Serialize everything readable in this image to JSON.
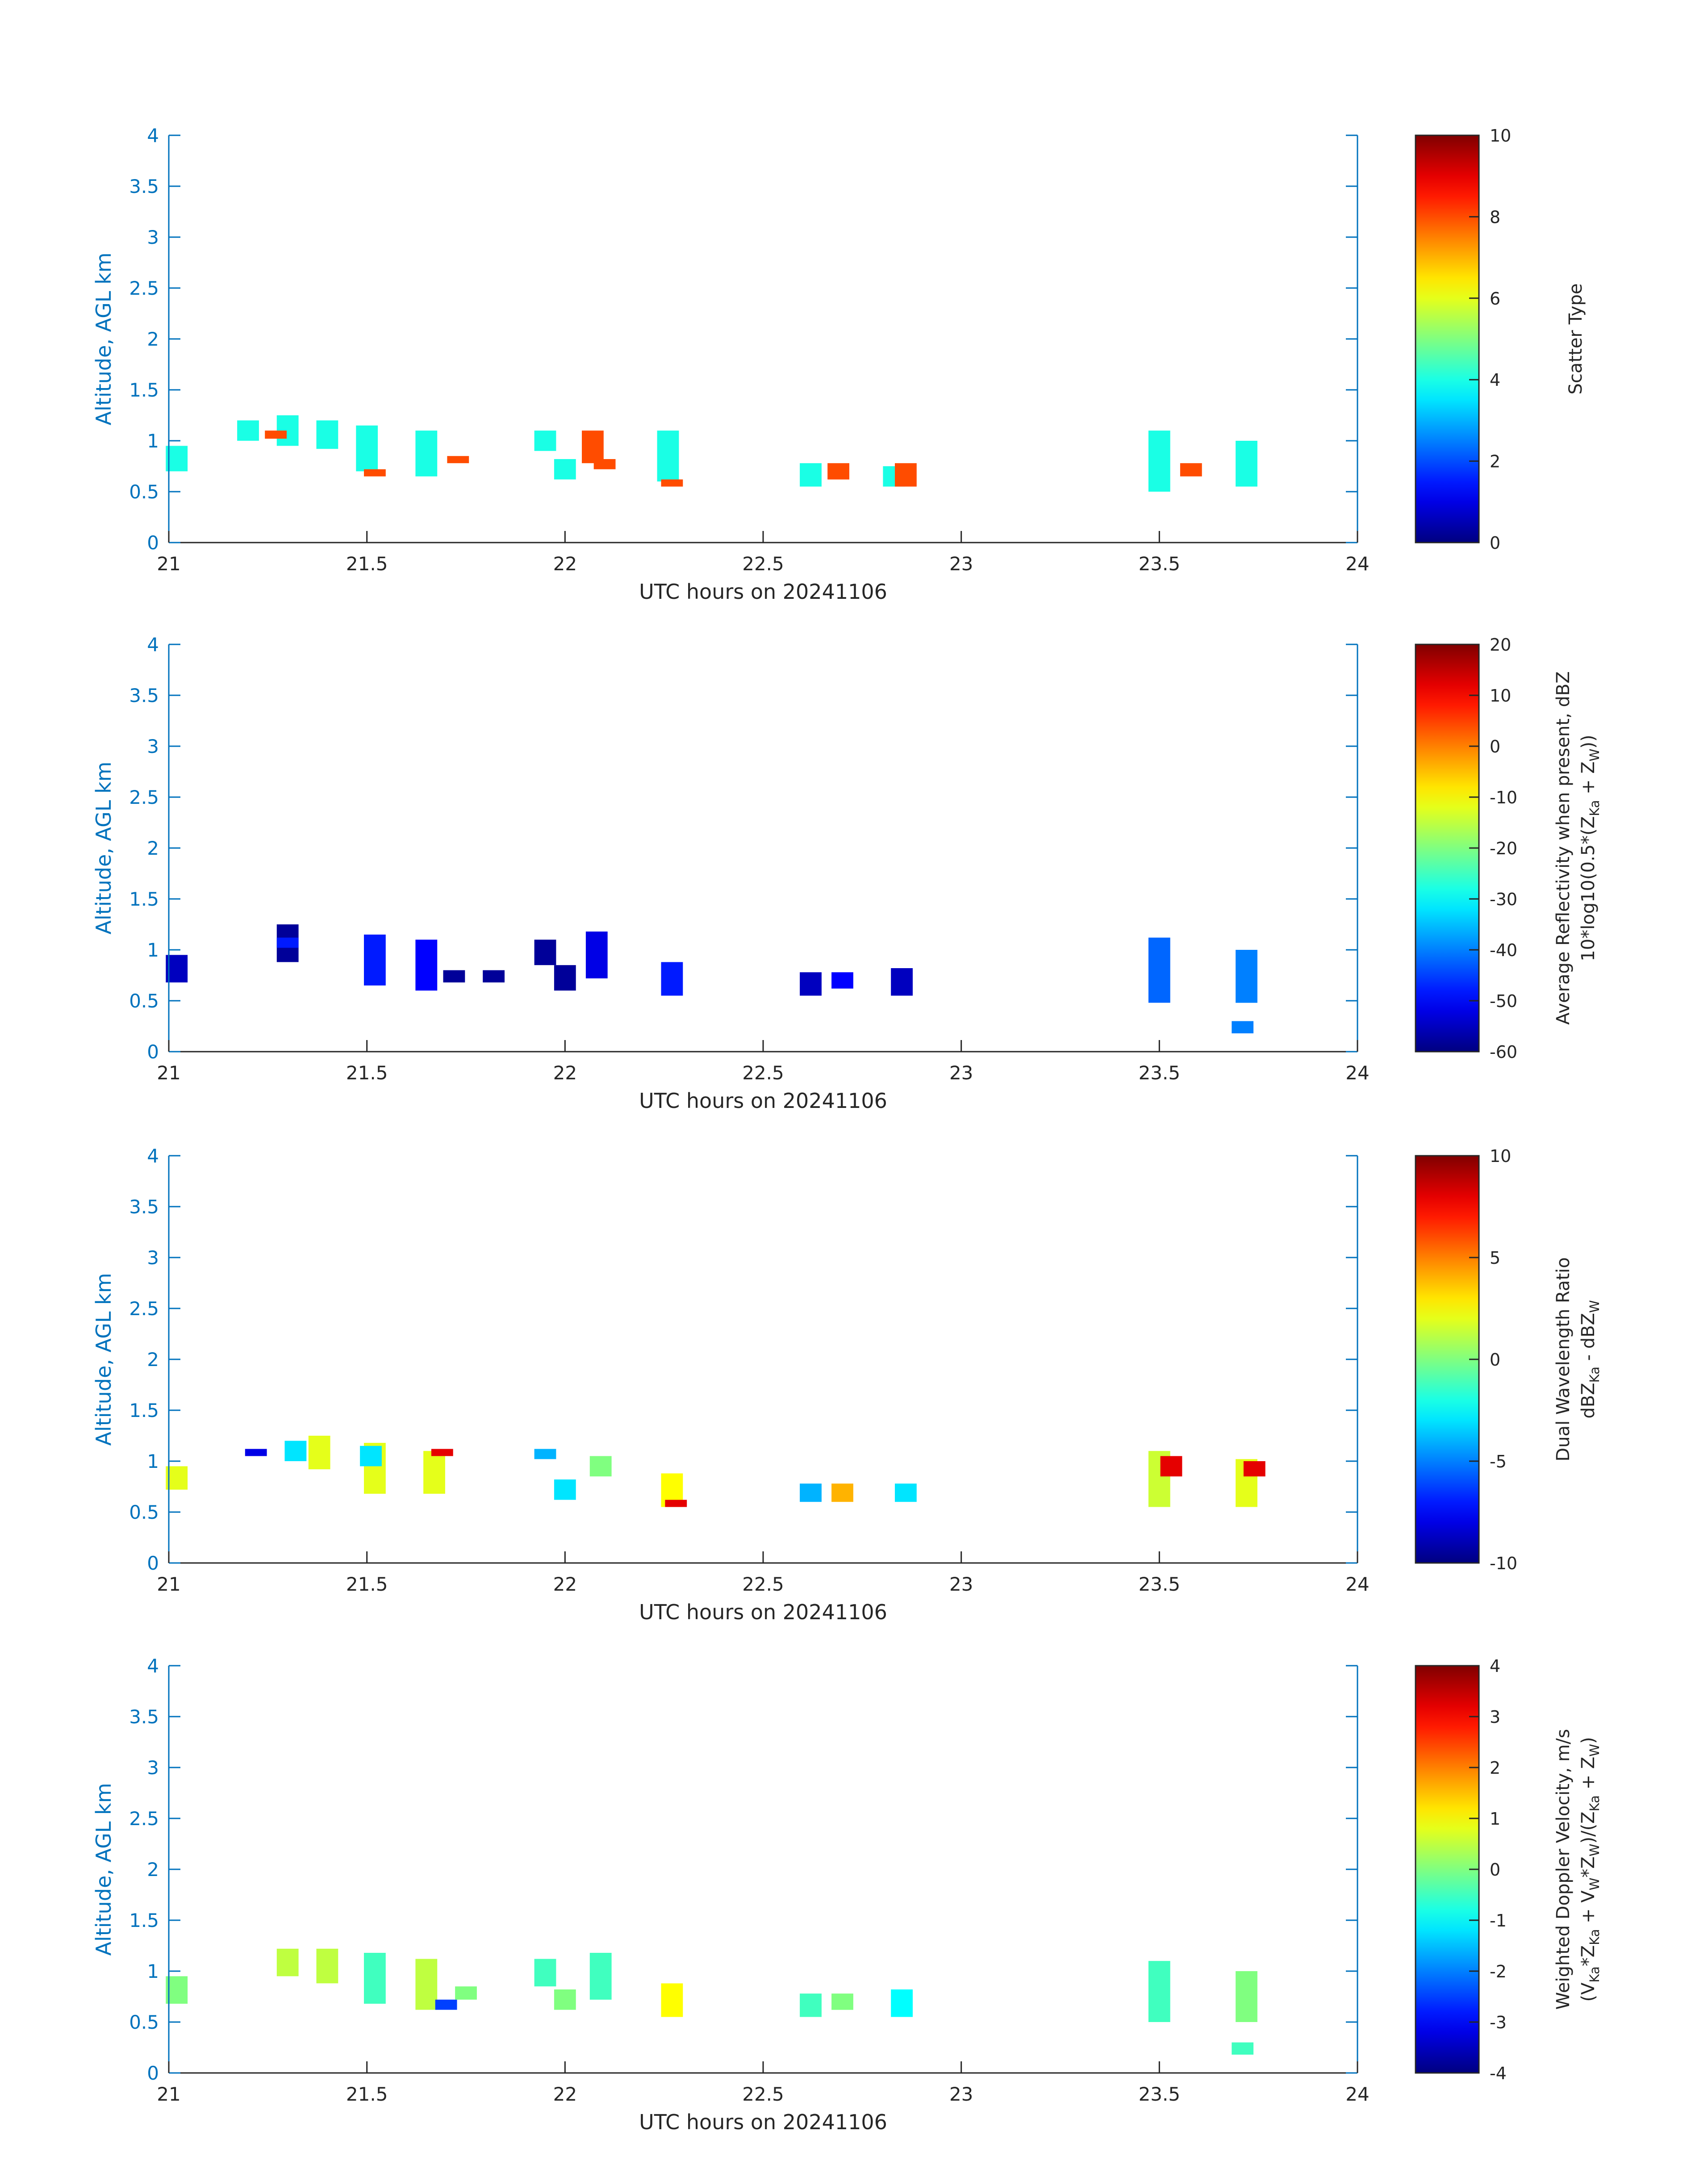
{
  "chart_data": [
    {
      "type": "heatmap",
      "xlabel": "UTC hours on 20241106",
      "ylabel": "Altitude, AGL km",
      "xlim": [
        21,
        24
      ],
      "ylim": [
        0,
        4
      ],
      "xticks": [
        "21",
        "21.5",
        "22",
        "22.5",
        "23",
        "23.5",
        "24"
      ],
      "yticks": [
        "0",
        "0.5",
        "1",
        "1.5",
        "2",
        "2.5",
        "3",
        "3.5",
        "4"
      ],
      "colorbar": {
        "label_lines": [
          "Scatter Type"
        ],
        "range": [
          0,
          10
        ],
        "ticks": [
          "0",
          "2",
          "4",
          "6",
          "8",
          "10"
        ]
      },
      "cells": [
        {
          "t": 21.02,
          "z0": 0.7,
          "z1": 0.95,
          "v": 4.0
        },
        {
          "t": 21.2,
          "z0": 1.0,
          "z1": 1.2,
          "v": 4.0
        },
        {
          "t": 21.3,
          "z0": 0.95,
          "z1": 1.25,
          "v": 4.0
        },
        {
          "t": 21.27,
          "z0": 1.02,
          "z1": 1.1,
          "v": 8.0
        },
        {
          "t": 21.4,
          "z0": 0.92,
          "z1": 1.2,
          "v": 4.0
        },
        {
          "t": 21.5,
          "z0": 0.7,
          "z1": 1.15,
          "v": 4.0
        },
        {
          "t": 21.52,
          "z0": 0.65,
          "z1": 0.72,
          "v": 8.0
        },
        {
          "t": 21.65,
          "z0": 0.65,
          "z1": 1.1,
          "v": 4.0
        },
        {
          "t": 21.73,
          "z0": 0.78,
          "z1": 0.85,
          "v": 8.0
        },
        {
          "t": 21.95,
          "z0": 0.9,
          "z1": 1.1,
          "v": 4.0
        },
        {
          "t": 22.0,
          "z0": 0.62,
          "z1": 0.82,
          "v": 4.0
        },
        {
          "t": 22.07,
          "z0": 0.78,
          "z1": 1.1,
          "v": 8.0
        },
        {
          "t": 22.1,
          "z0": 0.72,
          "z1": 0.82,
          "v": 8.0
        },
        {
          "t": 22.26,
          "z0": 0.6,
          "z1": 1.1,
          "v": 4.0
        },
        {
          "t": 22.27,
          "z0": 0.55,
          "z1": 0.62,
          "v": 8.0
        },
        {
          "t": 22.62,
          "z0": 0.55,
          "z1": 0.78,
          "v": 4.0
        },
        {
          "t": 22.69,
          "z0": 0.62,
          "z1": 0.78,
          "v": 8.0
        },
        {
          "t": 22.83,
          "z0": 0.55,
          "z1": 0.75,
          "v": 4.0
        },
        {
          "t": 22.86,
          "z0": 0.55,
          "z1": 0.78,
          "v": 8.0
        },
        {
          "t": 23.5,
          "z0": 0.5,
          "z1": 1.1,
          "v": 4.0
        },
        {
          "t": 23.58,
          "z0": 0.65,
          "z1": 0.78,
          "v": 8.0
        },
        {
          "t": 23.72,
          "z0": 0.55,
          "z1": 1.0,
          "v": 4.0
        }
      ]
    },
    {
      "type": "heatmap",
      "xlabel": "UTC hours on 20241106",
      "ylabel": "Altitude, AGL km",
      "xlim": [
        21,
        24
      ],
      "ylim": [
        0,
        4
      ],
      "xticks": [
        "21",
        "21.5",
        "22",
        "22.5",
        "23",
        "23.5",
        "24"
      ],
      "yticks": [
        "0",
        "0.5",
        "1",
        "1.5",
        "2",
        "2.5",
        "3",
        "3.5",
        "4"
      ],
      "colorbar": {
        "label_lines": [
          "Average Reflectivity when present, dBZ",
          "10*log10(0.5*(Z{Ka} + Z{W}))"
        ],
        "range": [
          -60,
          20
        ],
        "ticks": [
          "-60",
          "-50",
          "-40",
          "-30",
          "-20",
          "-10",
          "0",
          "10",
          "20"
        ]
      },
      "cells": [
        {
          "t": 21.02,
          "z0": 0.68,
          "z1": 0.95,
          "v": -55.0
        },
        {
          "t": 21.3,
          "z0": 0.88,
          "z1": 1.25,
          "v": -58.0
        },
        {
          "t": 21.3,
          "z0": 1.02,
          "z1": 1.12,
          "v": -48.0
        },
        {
          "t": 21.52,
          "z0": 0.65,
          "z1": 1.15,
          "v": -48.0
        },
        {
          "t": 21.65,
          "z0": 0.6,
          "z1": 1.1,
          "v": -50.0
        },
        {
          "t": 21.72,
          "z0": 0.68,
          "z1": 0.8,
          "v": -58.0
        },
        {
          "t": 21.82,
          "z0": 0.68,
          "z1": 0.8,
          "v": -58.0
        },
        {
          "t": 21.95,
          "z0": 0.85,
          "z1": 1.1,
          "v": -58.0
        },
        {
          "t": 22.0,
          "z0": 0.6,
          "z1": 0.85,
          "v": -58.0
        },
        {
          "t": 22.08,
          "z0": 0.72,
          "z1": 1.18,
          "v": -52.0
        },
        {
          "t": 22.27,
          "z0": 0.55,
          "z1": 0.88,
          "v": -48.0
        },
        {
          "t": 22.62,
          "z0": 0.55,
          "z1": 0.78,
          "v": -55.0
        },
        {
          "t": 22.7,
          "z0": 0.62,
          "z1": 0.78,
          "v": -50.0
        },
        {
          "t": 22.85,
          "z0": 0.55,
          "z1": 0.82,
          "v": -55.0
        },
        {
          "t": 23.5,
          "z0": 0.48,
          "z1": 1.12,
          "v": -42.0
        },
        {
          "t": 23.72,
          "z0": 0.48,
          "z1": 1.0,
          "v": -40.0
        },
        {
          "t": 23.71,
          "z0": 0.18,
          "z1": 0.3,
          "v": -40.0
        }
      ]
    },
    {
      "type": "heatmap",
      "xlabel": "UTC hours on 20241106",
      "ylabel": "Altitude, AGL km",
      "xlim": [
        21,
        24
      ],
      "ylim": [
        0,
        4
      ],
      "xticks": [
        "21",
        "21.5",
        "22",
        "22.5",
        "23",
        "23.5",
        "24"
      ],
      "yticks": [
        "0",
        "0.5",
        "1",
        "1.5",
        "2",
        "2.5",
        "3",
        "3.5",
        "4"
      ],
      "colorbar": {
        "label_lines": [
          "Dual Wavelength Ratio",
          "dBZ{Ka} - dBZ{W}"
        ],
        "range": [
          -10,
          10
        ],
        "ticks": [
          "-10",
          "-5",
          "0",
          "5",
          "10"
        ]
      },
      "cells": [
        {
          "t": 21.02,
          "z0": 0.72,
          "z1": 0.95,
          "v": 2.0
        },
        {
          "t": 21.22,
          "z0": 1.05,
          "z1": 1.12,
          "v": -8.0
        },
        {
          "t": 21.32,
          "z0": 1.0,
          "z1": 1.2,
          "v": -3.0
        },
        {
          "t": 21.38,
          "z0": 0.92,
          "z1": 1.25,
          "v": 2.0
        },
        {
          "t": 21.52,
          "z0": 0.68,
          "z1": 1.18,
          "v": 2.0
        },
        {
          "t": 21.51,
          "z0": 0.95,
          "z1": 1.15,
          "v": -3.0
        },
        {
          "t": 21.67,
          "z0": 0.68,
          "z1": 1.1,
          "v": 2.0
        },
        {
          "t": 21.69,
          "z0": 1.05,
          "z1": 1.12,
          "v": 8.0
        },
        {
          "t": 21.95,
          "z0": 1.02,
          "z1": 1.12,
          "v": -4.0
        },
        {
          "t": 22.0,
          "z0": 0.62,
          "z1": 0.82,
          "v": -3.0
        },
        {
          "t": 22.09,
          "z0": 0.85,
          "z1": 1.05,
          "v": 0.0
        },
        {
          "t": 22.27,
          "z0": 0.55,
          "z1": 0.88,
          "v": 2.5
        },
        {
          "t": 22.28,
          "z0": 0.55,
          "z1": 0.62,
          "v": 8.0
        },
        {
          "t": 22.62,
          "z0": 0.6,
          "z1": 0.78,
          "v": -4.0
        },
        {
          "t": 22.7,
          "z0": 0.6,
          "z1": 0.78,
          "v": 4.0
        },
        {
          "t": 22.86,
          "z0": 0.6,
          "z1": 0.78,
          "v": -3.0
        },
        {
          "t": 23.5,
          "z0": 0.55,
          "z1": 1.1,
          "v": 1.5
        },
        {
          "t": 23.53,
          "z0": 0.85,
          "z1": 1.05,
          "v": 8.0
        },
        {
          "t": 23.72,
          "z0": 0.55,
          "z1": 1.02,
          "v": 2.0
        },
        {
          "t": 23.74,
          "z0": 0.85,
          "z1": 1.0,
          "v": 8.0
        }
      ]
    },
    {
      "type": "heatmap",
      "xlabel": "UTC hours on 20241106",
      "ylabel": "Altitude, AGL km",
      "xlim": [
        21,
        24
      ],
      "ylim": [
        0,
        4
      ],
      "xticks": [
        "21",
        "21.5",
        "22",
        "22.5",
        "23",
        "23.5",
        "24"
      ],
      "yticks": [
        "0",
        "0.5",
        "1",
        "1.5",
        "2",
        "2.5",
        "3",
        "3.5",
        "4"
      ],
      "colorbar": {
        "label_lines": [
          "Weighted Doppler Velocity, m/s",
          "(V{Ka}*Z{Ka} + V{W}*Z{W})/(Z{Ka} + Z{W})"
        ],
        "range": [
          -4,
          4
        ],
        "ticks": [
          "-4",
          "-3",
          "-2",
          "-1",
          "0",
          "1",
          "2",
          "3",
          "4"
        ]
      },
      "cells": [
        {
          "t": 21.02,
          "z0": 0.68,
          "z1": 0.95,
          "v": 0.0
        },
        {
          "t": 21.3,
          "z0": 0.95,
          "z1": 1.22,
          "v": 0.5
        },
        {
          "t": 21.4,
          "z0": 0.88,
          "z1": 1.22,
          "v": 0.5
        },
        {
          "t": 21.52,
          "z0": 0.68,
          "z1": 1.18,
          "v": -0.5
        },
        {
          "t": 21.65,
          "z0": 0.62,
          "z1": 1.12,
          "v": 0.5
        },
        {
          "t": 21.7,
          "z0": 0.62,
          "z1": 0.72,
          "v": -2.5
        },
        {
          "t": 21.75,
          "z0": 0.72,
          "z1": 0.85,
          "v": 0.0
        },
        {
          "t": 21.95,
          "z0": 0.85,
          "z1": 1.12,
          "v": -0.5
        },
        {
          "t": 22.0,
          "z0": 0.62,
          "z1": 0.82,
          "v": 0.0
        },
        {
          "t": 22.09,
          "z0": 0.72,
          "z1": 1.18,
          "v": -0.5
        },
        {
          "t": 22.27,
          "z0": 0.55,
          "z1": 0.88,
          "v": 1.0
        },
        {
          "t": 22.62,
          "z0": 0.55,
          "z1": 0.78,
          "v": -0.5
        },
        {
          "t": 22.7,
          "z0": 0.62,
          "z1": 0.78,
          "v": 0.0
        },
        {
          "t": 22.85,
          "z0": 0.55,
          "z1": 0.82,
          "v": -1.0
        },
        {
          "t": 23.5,
          "z0": 0.5,
          "z1": 1.1,
          "v": -0.5
        },
        {
          "t": 23.72,
          "z0": 0.5,
          "z1": 1.0,
          "v": 0.0
        },
        {
          "t": 23.71,
          "z0": 0.18,
          "z1": 0.3,
          "v": -0.5
        }
      ]
    }
  ]
}
